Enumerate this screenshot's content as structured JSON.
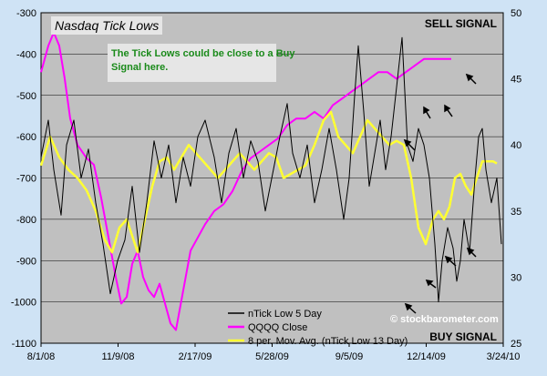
{
  "chart_data": {
    "type": "line",
    "title": "Nasdaq Tick Lows",
    "signals": {
      "top_right": "SELL SIGNAL",
      "bottom_right": "BUY SIGNAL"
    },
    "annotation": "The Tick Lows could be close to a Buy Signal here.",
    "watermark": "© stockbarometer.com",
    "x_tick_labels": [
      "8/1/08",
      "11/9/08",
      "2/17/09",
      "5/28/09",
      "9/5/09",
      "12/14/09",
      "3/24/10"
    ],
    "y_left": {
      "ticks": [
        -300,
        -400,
        -500,
        -600,
        -700,
        -800,
        -900,
        -1000,
        -1100
      ],
      "ylim": [
        -1100,
        -300
      ]
    },
    "y_right": {
      "ticks": [
        50,
        45,
        40,
        35,
        30,
        25
      ],
      "ylim": [
        25,
        50
      ]
    },
    "legend_placement": "bottom-right",
    "series": [
      {
        "name": "nTick Low 5 Day",
        "color": "#000000",
        "axis": "left",
        "points": [
          [
            0,
            -650
          ],
          [
            8,
            -560
          ],
          [
            14,
            -680
          ],
          [
            22,
            -790
          ],
          [
            28,
            -620
          ],
          [
            36,
            -560
          ],
          [
            44,
            -700
          ],
          [
            52,
            -630
          ],
          [
            60,
            -760
          ],
          [
            68,
            -860
          ],
          [
            76,
            -980
          ],
          [
            84,
            -900
          ],
          [
            92,
            -850
          ],
          [
            100,
            -720
          ],
          [
            108,
            -880
          ],
          [
            116,
            -760
          ],
          [
            124,
            -610
          ],
          [
            132,
            -700
          ],
          [
            140,
            -620
          ],
          [
            148,
            -760
          ],
          [
            156,
            -650
          ],
          [
            164,
            -720
          ],
          [
            172,
            -600
          ],
          [
            180,
            -560
          ],
          [
            190,
            -650
          ],
          [
            198,
            -760
          ],
          [
            206,
            -640
          ],
          [
            214,
            -580
          ],
          [
            222,
            -700
          ],
          [
            230,
            -610
          ],
          [
            238,
            -660
          ],
          [
            246,
            -780
          ],
          [
            254,
            -690
          ],
          [
            262,
            -600
          ],
          [
            270,
            -520
          ],
          [
            276,
            -640
          ],
          [
            284,
            -700
          ],
          [
            292,
            -620
          ],
          [
            300,
            -760
          ],
          [
            308,
            -680
          ],
          [
            316,
            -580
          ],
          [
            324,
            -680
          ],
          [
            332,
            -800
          ],
          [
            338,
            -700
          ],
          [
            344,
            -500
          ],
          [
            348,
            -380
          ],
          [
            354,
            -540
          ],
          [
            360,
            -720
          ],
          [
            366,
            -640
          ],
          [
            372,
            -560
          ],
          [
            378,
            -680
          ],
          [
            384,
            -600
          ],
          [
            390,
            -480
          ],
          [
            396,
            -360
          ],
          [
            402,
            -620
          ],
          [
            408,
            -660
          ],
          [
            414,
            -580
          ],
          [
            420,
            -620
          ],
          [
            426,
            -700
          ],
          [
            432,
            -860
          ],
          [
            436,
            -1000
          ],
          [
            440,
            -900
          ],
          [
            446,
            -820
          ],
          [
            452,
            -870
          ],
          [
            456,
            -950
          ],
          [
            460,
            -900
          ],
          [
            464,
            -800
          ],
          [
            470,
            -880
          ],
          [
            476,
            -700
          ],
          [
            480,
            -600
          ],
          [
            484,
            -580
          ],
          [
            488,
            -680
          ],
          [
            494,
            -760
          ],
          [
            500,
            -700
          ],
          [
            505,
            -860
          ]
        ]
      },
      {
        "name": "QQQQ Close",
        "color": "#ff00ff",
        "axis": "right",
        "points": [
          [
            0,
            45.5
          ],
          [
            8,
            47.5
          ],
          [
            14,
            48.5
          ],
          [
            20,
            47.5
          ],
          [
            26,
            45
          ],
          [
            32,
            42
          ],
          [
            40,
            40
          ],
          [
            50,
            39
          ],
          [
            58,
            38.5
          ],
          [
            66,
            36
          ],
          [
            74,
            33
          ],
          [
            82,
            30
          ],
          [
            88,
            28
          ],
          [
            94,
            28.5
          ],
          [
            100,
            31
          ],
          [
            106,
            32
          ],
          [
            112,
            30
          ],
          [
            118,
            29
          ],
          [
            124,
            28.5
          ],
          [
            130,
            29.5
          ],
          [
            136,
            28
          ],
          [
            142,
            26.5
          ],
          [
            148,
            26
          ],
          [
            156,
            29
          ],
          [
            164,
            32
          ],
          [
            172,
            33
          ],
          [
            180,
            34
          ],
          [
            190,
            35
          ],
          [
            200,
            35.5
          ],
          [
            210,
            36.5
          ],
          [
            220,
            38
          ],
          [
            230,
            39
          ],
          [
            240,
            39.5
          ],
          [
            250,
            40
          ],
          [
            260,
            40.5
          ],
          [
            270,
            41.5
          ],
          [
            280,
            42
          ],
          [
            290,
            42
          ],
          [
            300,
            42.5
          ],
          [
            310,
            42
          ],
          [
            320,
            43
          ],
          [
            330,
            43.5
          ],
          [
            340,
            44
          ],
          [
            350,
            44.5
          ],
          [
            360,
            45
          ],
          [
            370,
            45.5
          ],
          [
            380,
            45.5
          ],
          [
            390,
            45
          ],
          [
            400,
            45.5
          ],
          [
            410,
            46
          ],
          [
            420,
            46.5
          ],
          [
            430,
            46.5
          ],
          [
            440,
            46.5
          ],
          [
            450,
            46.5
          ]
        ]
      },
      {
        "name": "8 per. Mov. Avg. (nTick Low 13 Day)",
        "color": "#ffff33",
        "axis": "left",
        "points": [
          [
            0,
            -670
          ],
          [
            10,
            -600
          ],
          [
            20,
            -650
          ],
          [
            30,
            -680
          ],
          [
            40,
            -700
          ],
          [
            50,
            -730
          ],
          [
            60,
            -780
          ],
          [
            70,
            -850
          ],
          [
            78,
            -880
          ],
          [
            86,
            -820
          ],
          [
            94,
            -800
          ],
          [
            100,
            -840
          ],
          [
            106,
            -880
          ],
          [
            114,
            -800
          ],
          [
            122,
            -720
          ],
          [
            130,
            -660
          ],
          [
            138,
            -650
          ],
          [
            146,
            -680
          ],
          [
            154,
            -650
          ],
          [
            162,
            -620
          ],
          [
            170,
            -640
          ],
          [
            178,
            -660
          ],
          [
            186,
            -680
          ],
          [
            194,
            -700
          ],
          [
            202,
            -680
          ],
          [
            210,
            -660
          ],
          [
            218,
            -640
          ],
          [
            226,
            -660
          ],
          [
            234,
            -680
          ],
          [
            242,
            -660
          ],
          [
            250,
            -640
          ],
          [
            258,
            -650
          ],
          [
            266,
            -700
          ],
          [
            274,
            -690
          ],
          [
            282,
            -680
          ],
          [
            290,
            -670
          ],
          [
            300,
            -620
          ],
          [
            310,
            -560
          ],
          [
            318,
            -540
          ],
          [
            326,
            -600
          ],
          [
            334,
            -620
          ],
          [
            342,
            -640
          ],
          [
            350,
            -600
          ],
          [
            358,
            -560
          ],
          [
            366,
            -580
          ],
          [
            374,
            -600
          ],
          [
            382,
            -620
          ],
          [
            390,
            -610
          ],
          [
            398,
            -620
          ],
          [
            406,
            -700
          ],
          [
            414,
            -820
          ],
          [
            422,
            -860
          ],
          [
            430,
            -800
          ],
          [
            436,
            -780
          ],
          [
            442,
            -800
          ],
          [
            448,
            -770
          ],
          [
            454,
            -700
          ],
          [
            460,
            -690
          ],
          [
            466,
            -720
          ],
          [
            472,
            -740
          ],
          [
            478,
            -700
          ],
          [
            484,
            -660
          ],
          [
            490,
            -660
          ],
          [
            496,
            -660
          ],
          [
            500,
            -665
          ]
        ]
      }
    ]
  }
}
